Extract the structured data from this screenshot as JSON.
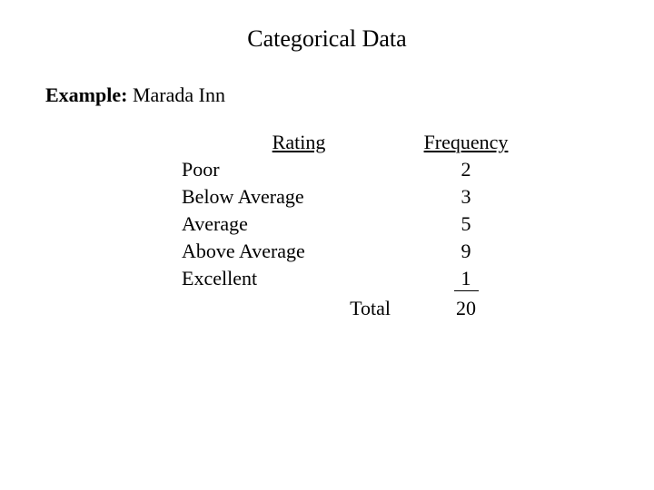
{
  "title": "Categorical Data",
  "example_label": "Example:",
  "example_name": "Marada Inn",
  "headers": {
    "rating": "Rating",
    "frequency": "Frequency"
  },
  "rows": {
    "r0": {
      "rating": "Poor",
      "frequency": "2"
    },
    "r1": {
      "rating": "Below Average",
      "frequency": "3"
    },
    "r2": {
      "rating": "Average",
      "frequency": "5"
    },
    "r3": {
      "rating": "Above Average",
      "frequency": "9"
    },
    "r4": {
      "rating": "Excellent",
      "frequency": "1"
    }
  },
  "total": {
    "label": "Total",
    "value": "20"
  }
}
